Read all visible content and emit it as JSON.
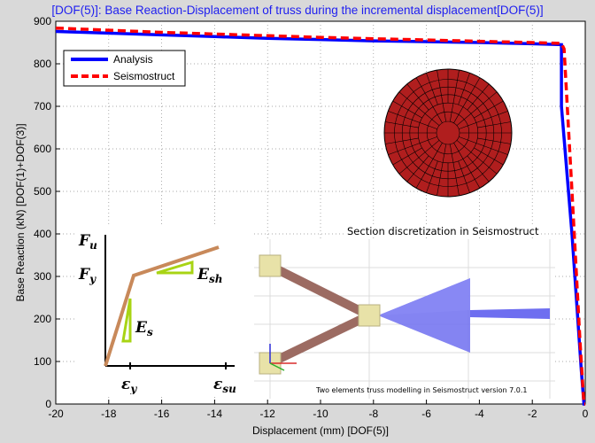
{
  "chart_data": {
    "type": "line",
    "title": "[DOF(5)]: Base Reaction-Displacement of truss during the incremental displacement[DOF(5)]",
    "xlabel": "Displacement (mm) [DOF(5)]",
    "ylabel": "Base Reaction (kN) [DOF(1)+DOF(3)]",
    "xlim": [
      -20,
      0
    ],
    "ylim": [
      0,
      900
    ],
    "xticks": [
      -20,
      -18,
      -16,
      -14,
      -12,
      -10,
      -8,
      -6,
      -4,
      -2,
      0
    ],
    "yticks": [
      0,
      100,
      200,
      300,
      400,
      500,
      600,
      700,
      800,
      900
    ],
    "grid": "dotted",
    "legend": "top-left",
    "series": [
      {
        "name": "Analysis",
        "color": "#0000ff",
        "style": "solid",
        "x": [
          -20,
          -18,
          -16,
          -14,
          -12,
          -10,
          -8,
          -6,
          -4,
          -2,
          -0.9,
          -0.9,
          -0.5,
          -0.15,
          -0.05,
          0
        ],
        "y": [
          876,
          872,
          868,
          864,
          860,
          857,
          854,
          852,
          850,
          847,
          845,
          700,
          400,
          80,
          0,
          0
        ]
      },
      {
        "name": "Seismostruct",
        "color": "#ff0000",
        "style": "dashed",
        "x": [
          -20,
          -18,
          -16,
          -14,
          -12,
          -10,
          -8,
          -6,
          -4,
          -2,
          -0.9,
          -0.8,
          -0.5,
          -0.2,
          -0.05,
          0
        ],
        "y": [
          884,
          879,
          874,
          870,
          866,
          862,
          859,
          856,
          853,
          850,
          848,
          835,
          500,
          150,
          0,
          0
        ]
      }
    ]
  },
  "insets": {
    "section_caption": "Section discretization in Seismostruct",
    "model_caption": "Two elements truss modelling in Seismostruct version 7.0.1",
    "material_labels": {
      "fu": "F",
      "fu_sub": "u",
      "fy": "F",
      "fy_sub": "y",
      "esh": "E",
      "esh_sub": "sh",
      "es": "E",
      "es_sub": "s",
      "ey": "ε",
      "ey_sub": "y",
      "esu": "ε",
      "esu_sub": "su"
    }
  },
  "colors": {
    "section_fill": "#b01e1e",
    "rebar_line": "#c8895a",
    "triangle": "#a8d414",
    "truss_bar": "#9c6b62",
    "node": "#e8e2a8",
    "cone": "#6e6ef0"
  }
}
